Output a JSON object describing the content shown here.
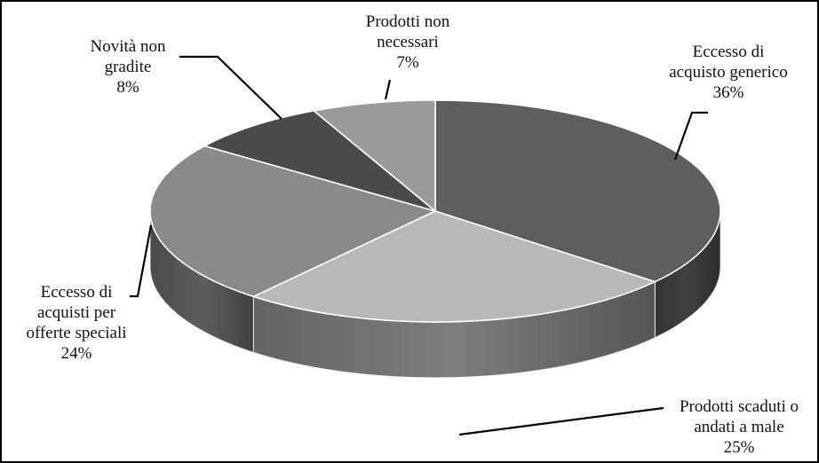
{
  "chart_data": {
    "type": "pie",
    "style": "3d",
    "title": "",
    "slices": [
      {
        "label_lines": [
          "Eccesso di",
          "acquisto generico"
        ],
        "value": 36,
        "pct": "36%",
        "color": "#5e5e5e"
      },
      {
        "label_lines": [
          "Prodotti scaduti o",
          "andati a male"
        ],
        "value": 25,
        "pct": "25%",
        "color": "#b8b8b8"
      },
      {
        "label_lines": [
          "Eccesso di",
          "acquisti per",
          "offerte speciali"
        ],
        "value": 24,
        "pct": "24%",
        "color": "#8a8a8a"
      },
      {
        "label_lines": [
          "Novità non",
          "gradite"
        ],
        "value": 8,
        "pct": "8%",
        "color": "#4a4a4a"
      },
      {
        "label_lines": [
          "Prodotti non",
          "necessari"
        ],
        "value": 7,
        "pct": "7%",
        "color": "#9a9a9a"
      }
    ]
  }
}
